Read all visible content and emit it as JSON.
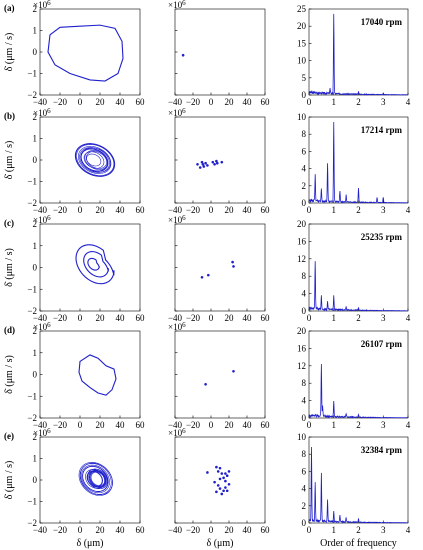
{
  "colors": {
    "series": "#1f1fcc",
    "axis": "#000000"
  },
  "labels": {
    "phase_xlabel": "δ (μm)",
    "poincare_xlabel": "δ (μm)",
    "spectrum_xlabel": "Order of frequency",
    "phase_ylabel": "δ̇ (μm / s)",
    "y_exponent_base": "×10",
    "y_exponent_power": "6"
  },
  "chart_data": [
    {
      "type": "line",
      "panel": "phase",
      "row": "(a)",
      "xlim": [
        -40,
        60
      ],
      "ylim": [
        -2,
        2
      ],
      "xticks": [
        "−40",
        "−20",
        "0",
        "20",
        "40",
        "60"
      ],
      "yticks": [
        "2",
        "1",
        "0",
        "−1",
        "−2"
      ],
      "series": [
        {
          "values": [
            [
              -30,
              0.8
            ],
            [
              -20,
              1.15
            ],
            [
              0,
              1.2
            ],
            [
              20,
              1.25
            ],
            [
              35,
              1.1
            ],
            [
              42,
              0.5
            ],
            [
              43,
              -0.3
            ],
            [
              38,
              -1.0
            ],
            [
              25,
              -1.35
            ],
            [
              10,
              -1.3
            ],
            [
              -10,
              -1.0
            ],
            [
              -25,
              -0.6
            ],
            [
              -32,
              0.0
            ],
            [
              -30,
              0.8
            ]
          ]
        }
      ]
    },
    {
      "type": "scatter",
      "panel": "poincare",
      "row": "(a)",
      "xlim": [
        -40,
        60
      ],
      "ylim": [
        -2,
        2
      ],
      "xticks": [
        "−40",
        "−20",
        "0",
        "20",
        "40",
        "60"
      ],
      "series": [
        {
          "values": [
            [
              -31,
              -0.15
            ]
          ]
        }
      ]
    },
    {
      "type": "line",
      "panel": "spectrum",
      "row": "(a)",
      "rpm": "17040 rpm",
      "xlim": [
        0,
        4
      ],
      "ylim": [
        0,
        25
      ],
      "xticks": [
        "0",
        "1",
        "2",
        "3",
        "4"
      ],
      "yticks": [
        "25",
        "20",
        "15",
        "10",
        "5",
        "0"
      ],
      "peaks": [
        [
          1.0,
          23
        ],
        [
          0.85,
          1.5
        ],
        [
          2.0,
          0.8
        ],
        [
          3.0,
          0.4
        ]
      ]
    },
    {
      "type": "line",
      "panel": "phase",
      "row": "(b)",
      "xlim": [
        -40,
        60
      ],
      "ylim": [
        -2,
        2
      ],
      "xticks": [
        "−40",
        "−20",
        "0",
        "20",
        "40",
        "60"
      ],
      "yticks": [
        "2",
        "1",
        "0",
        "−1",
        "−2"
      ],
      "series": []
    },
    {
      "type": "scatter",
      "panel": "poincare",
      "row": "(b)",
      "xlim": [
        -40,
        60
      ],
      "ylim": [
        -2,
        2
      ],
      "xticks": [
        "−40",
        "−20",
        "0",
        "20",
        "40",
        "60"
      ],
      "series": [
        {
          "values": [
            [
              -15,
              -0.2
            ],
            [
              -12,
              -0.35
            ],
            [
              -10,
              -0.1
            ],
            [
              -8,
              -0.3
            ],
            [
              -6,
              -0.15
            ],
            [
              -4,
              -0.25
            ],
            [
              2,
              -0.1
            ],
            [
              4,
              -0.2
            ],
            [
              6,
              -0.05
            ],
            [
              7,
              -0.15
            ],
            [
              12,
              -0.1
            ],
            [
              -9,
              -0.2
            ]
          ]
        }
      ]
    },
    {
      "type": "line",
      "panel": "spectrum",
      "row": "(b)",
      "rpm": "17214 rpm",
      "xlim": [
        0,
        4
      ],
      "ylim": [
        0,
        10
      ],
      "xticks": [
        "0",
        "1",
        "2",
        "3",
        "4"
      ],
      "yticks": [
        "10",
        "8",
        "6",
        "4",
        "2",
        "0"
      ],
      "peaks": [
        [
          1.0,
          9.2
        ],
        [
          0.75,
          4.5
        ],
        [
          0.25,
          3.0
        ],
        [
          0.5,
          1.5
        ],
        [
          1.25,
          1.3
        ],
        [
          2.0,
          1.6
        ],
        [
          1.5,
          0.8
        ],
        [
          2.75,
          0.6
        ],
        [
          3.0,
          0.6
        ]
      ]
    },
    {
      "type": "line",
      "panel": "phase",
      "row": "(c)",
      "xlim": [
        -40,
        60
      ],
      "ylim": [
        -2,
        2
      ],
      "xticks": [
        "−40",
        "−20",
        "0",
        "20",
        "40",
        "60"
      ],
      "yticks": [
        "2",
        "1",
        "0",
        "−1",
        "−2"
      ],
      "series": []
    },
    {
      "type": "scatter",
      "panel": "poincare",
      "row": "(c)",
      "xlim": [
        -40,
        60
      ],
      "ylim": [
        -2,
        2
      ],
      "xticks": [
        "−40",
        "−20",
        "0",
        "20",
        "40",
        "60"
      ],
      "series": [
        {
          "values": [
            [
              -10,
              -0.45
            ],
            [
              -3,
              -0.35
            ],
            [
              24,
              0.25
            ],
            [
              25,
              0.05
            ]
          ]
        }
      ]
    },
    {
      "type": "line",
      "panel": "spectrum",
      "row": "(c)",
      "rpm": "25235 rpm",
      "xlim": [
        0,
        4
      ],
      "ylim": [
        0,
        20
      ],
      "xticks": [
        "0",
        "1",
        "2",
        "3",
        "4"
      ],
      "yticks": [
        "20",
        "16",
        "12",
        "8",
        "4",
        "0"
      ],
      "peaks": [
        [
          0.25,
          11
        ],
        [
          0.5,
          3
        ],
        [
          0.75,
          1.8
        ],
        [
          1.0,
          3.2
        ],
        [
          1.5,
          0.8
        ],
        [
          2.0,
          0.6
        ]
      ]
    },
    {
      "type": "line",
      "panel": "phase",
      "row": "(d)",
      "xlim": [
        -40,
        60
      ],
      "ylim": [
        -2,
        2
      ],
      "xticks": [
        "−40",
        "−20",
        "0",
        "20",
        "40",
        "60"
      ],
      "yticks": [
        "2",
        "1",
        "0",
        "−1",
        "−2"
      ],
      "series": [
        {
          "values": [
            [
              0,
              0.6
            ],
            [
              10,
              0.9
            ],
            [
              18,
              0.75
            ],
            [
              26,
              0.4
            ],
            [
              34,
              0.25
            ],
            [
              36,
              -0.2
            ],
            [
              32,
              -0.7
            ],
            [
              26,
              -0.95
            ],
            [
              18,
              -0.85
            ],
            [
              10,
              -0.6
            ],
            [
              2,
              -0.3
            ],
            [
              -1,
              0.1
            ],
            [
              0,
              0.6
            ]
          ]
        }
      ]
    },
    {
      "type": "scatter",
      "panel": "poincare",
      "row": "(d)",
      "xlim": [
        -40,
        60
      ],
      "ylim": [
        -2,
        2
      ],
      "xticks": [
        "−40",
        "−20",
        "0",
        "20",
        "40",
        "60"
      ],
      "series": [
        {
          "values": [
            [
              -6,
              -0.45
            ],
            [
              25,
              0.15
            ]
          ]
        }
      ]
    },
    {
      "type": "line",
      "panel": "spectrum",
      "row": "(d)",
      "rpm": "26107 rpm",
      "xlim": [
        0,
        4
      ],
      "ylim": [
        0,
        20
      ],
      "xticks": [
        "0",
        "1",
        "2",
        "3",
        "4"
      ],
      "yticks": [
        "20",
        "16",
        "12",
        "8",
        "4",
        "0"
      ],
      "peaks": [
        [
          0.5,
          12
        ],
        [
          0.55,
          2.5
        ],
        [
          1.0,
          3.5
        ],
        [
          1.5,
          0.8
        ],
        [
          2.0,
          0.6
        ]
      ]
    },
    {
      "type": "line",
      "panel": "phase",
      "row": "(e)",
      "xlim": [
        -40,
        60
      ],
      "ylim": [
        -2,
        2
      ],
      "xticks": [
        "−40",
        "−20",
        "0",
        "20",
        "40",
        "60"
      ],
      "yticks": [
        "2",
        "1",
        "0",
        "−1",
        "−2"
      ],
      "series": []
    },
    {
      "type": "scatter",
      "panel": "poincare",
      "row": "(e)",
      "xlim": [
        -40,
        60
      ],
      "ylim": [
        -2,
        2
      ],
      "xticks": [
        "−40",
        "−20",
        "0",
        "20",
        "40",
        "60"
      ],
      "series": [
        {
          "values": [
            [
              -4,
              0.35
            ],
            [
              6,
              0.6
            ],
            [
              8,
              0.4
            ],
            [
              10,
              0.55
            ],
            [
              12,
              0.3
            ],
            [
              14,
              0.1
            ],
            [
              16,
              -0.05
            ],
            [
              18,
              0.2
            ],
            [
              20,
              0.4
            ],
            [
              20,
              -0.2
            ],
            [
              16,
              -0.35
            ],
            [
              14,
              -0.5
            ],
            [
              10,
              -0.4
            ],
            [
              8,
              -0.25
            ],
            [
              6,
              -0.55
            ],
            [
              12,
              -0.65
            ],
            [
              18,
              -0.5
            ],
            [
              4,
              -0.1
            ],
            [
              10,
              0.05
            ],
            [
              16,
              0.3
            ]
          ]
        }
      ]
    },
    {
      "type": "line",
      "panel": "spectrum",
      "row": "(e)",
      "rpm": "32384 rpm",
      "xlim": [
        0,
        4
      ],
      "ylim": [
        0,
        10
      ],
      "xticks": [
        "0",
        "1",
        "2",
        "3",
        "4"
      ],
      "yticks": [
        "10",
        "8",
        "6",
        "4",
        "2",
        "0"
      ],
      "peaks": [
        [
          0.1,
          8.5
        ],
        [
          0.25,
          4.5
        ],
        [
          0.5,
          5.5
        ],
        [
          0.75,
          2.5
        ],
        [
          1.0,
          1.2
        ],
        [
          1.25,
          0.8
        ],
        [
          1.5,
          0.5
        ],
        [
          2.0,
          0.4
        ]
      ]
    }
  ]
}
